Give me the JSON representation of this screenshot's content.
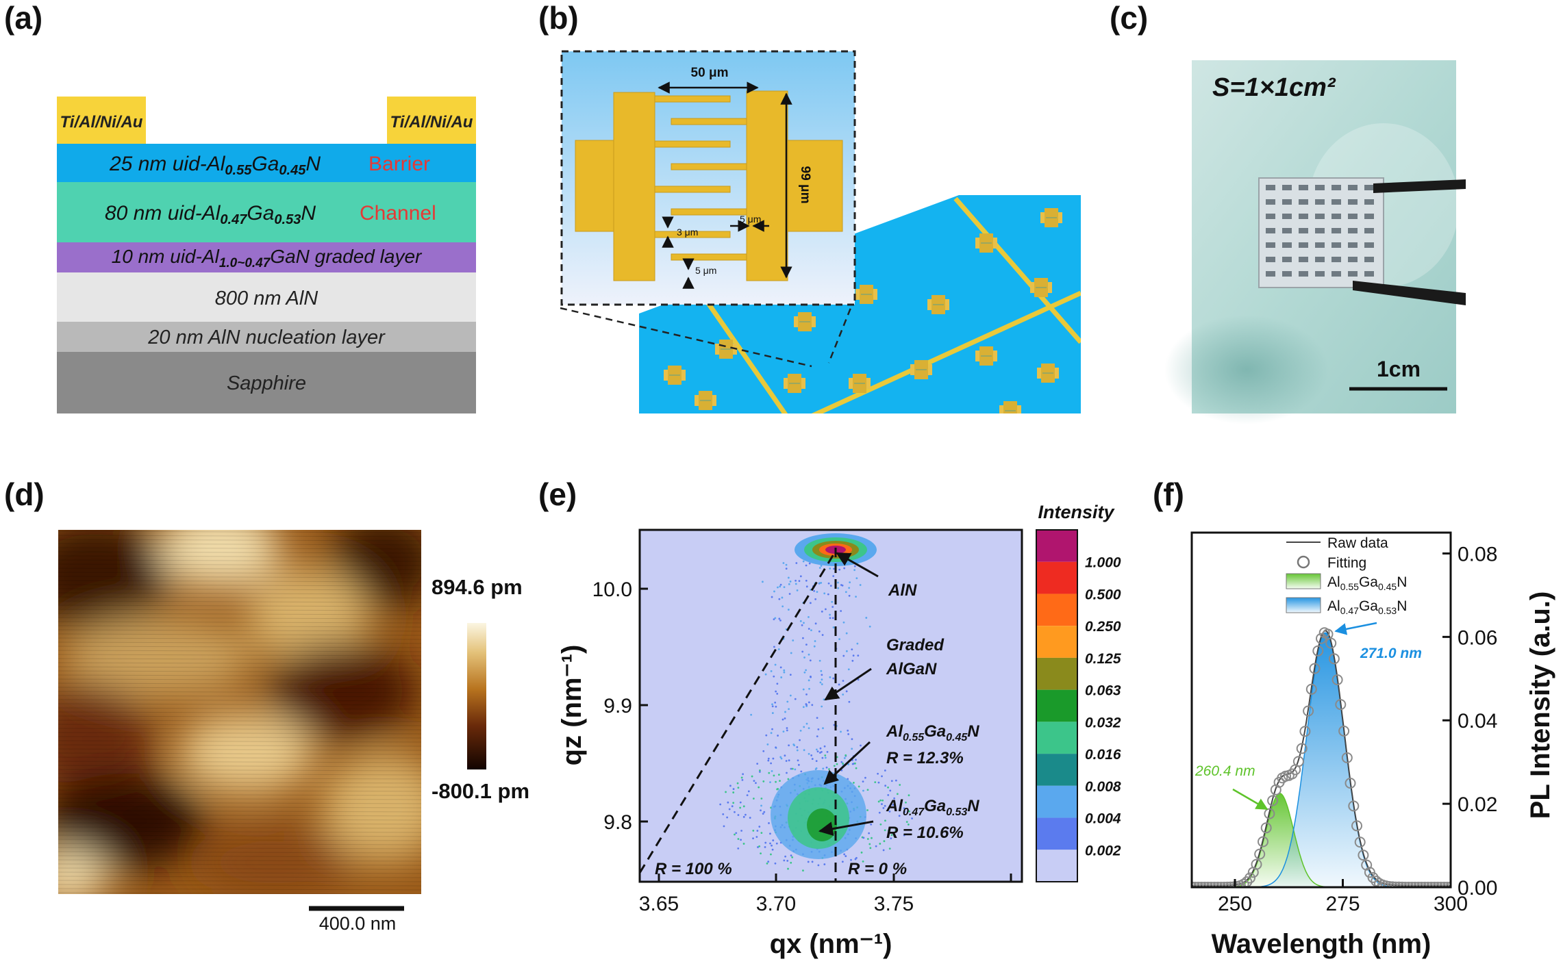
{
  "panels": {
    "a": {
      "label": "(a)",
      "contact_left": "Ti/Al/Ni/Au",
      "contact_right": "Ti/Al/Ni/Au",
      "layers": {
        "barrier": {
          "pre": "25 nm uid-Al",
          "s1": "0.55",
          "mid": "Ga",
          "s2": "0.45",
          "post": "N",
          "tag": "Barrier",
          "color": "#10aaea"
        },
        "channel": {
          "pre": "80 nm uid-Al",
          "s1": "0.47",
          "mid": "Ga",
          "s2": "0.53",
          "post": "N",
          "tag": "Channel",
          "color": "#4fd2b0"
        },
        "graded": {
          "pre": "10 nm uid-Al",
          "s1": "1.0~0.47",
          "post": "GaN graded layer",
          "color": "#9a6fcb"
        },
        "aln": {
          "text": "800 nm AlN",
          "color": "#e6e6e6"
        },
        "nucleation": {
          "text": "20 nm AlN nucleation layer",
          "color": "#b9b9b9"
        },
        "sapphire": {
          "text": "Sapphire",
          "color": "#8a8a8a"
        }
      },
      "tag_color": "#e53935",
      "contact_color": "#f7d33a"
    },
    "b": {
      "label": "(b)",
      "dim_width": "50 μm",
      "dim_height": "99 μm",
      "dim_gap": "5 μm",
      "dim_finger": "3 μm",
      "dim_bottom": "5 μm",
      "wafer_color": "#14b3f0",
      "metal_color": "#e8b92a"
    },
    "c": {
      "label": "(c)",
      "area": "S=1×1cm²",
      "scale": "1cm"
    },
    "d": {
      "label": "(d)",
      "max": "894.6 pm",
      "min": "-800.1 pm",
      "scalebar": "400.0 nm"
    },
    "e": {
      "label": "(e)",
      "intensity_title": "Intensity",
      "intensity_levels": [
        "1.000",
        "0.500",
        "0.250",
        "0.125",
        "0.063",
        "0.032",
        "0.016",
        "0.008",
        "0.004",
        "0.002"
      ],
      "level_colors": [
        "#b0156e",
        "#ee2b21",
        "#ff6a17",
        "#ff9a1f",
        "#8a8a1c",
        "#1a9a2a",
        "#3cc58a",
        "#1a8a8a",
        "#5aa8ee",
        "#5b7bee",
        "#c8cdf5"
      ],
      "xlabel": "qx (nm⁻¹)",
      "ylabel": "qz (nm⁻¹)",
      "xticks": [
        "3.65",
        "3.70",
        "3.75"
      ],
      "yticks": [
        "10.0",
        "9.9",
        "9.8"
      ],
      "annotations": {
        "aln": "AlN",
        "graded1": "Graded",
        "graded2": "AlGaN",
        "p1": {
          "pre": "Al",
          "s1": "0.55",
          "mid": "Ga",
          "s2": "0.45",
          "post": "N",
          "r": "R = 12.3%"
        },
        "p2": {
          "pre": "Al",
          "s1": "0.47",
          "mid": "Ga",
          "s2": "0.53",
          "post": "N",
          "r": "R = 10.6%"
        },
        "r100": "R = 100 %",
        "r0": "R = 0 %"
      }
    },
    "f": {
      "label": "(f)",
      "legend": {
        "raw": "Raw data",
        "fit": "Fitting",
        "p1": {
          "pre": "Al",
          "s1": "0.55",
          "mid": "Ga",
          "s2": "0.45",
          "post": "N"
        },
        "p2": {
          "pre": "Al",
          "s1": "0.47",
          "mid": "Ga",
          "s2": "0.53",
          "post": "N"
        }
      },
      "peak1": "260.4 nm",
      "peak2": "271.0 nm",
      "peak1_color": "#5ec32a",
      "peak2_color": "#1a8fe0"
    }
  },
  "chart_data": {
    "type": "line",
    "xlabel": "Wavelength (nm)",
    "ylabel": "PL Intensity (a.u.)",
    "xlim": [
      240,
      300
    ],
    "ylim": [
      0,
      0.085
    ],
    "xticks": [
      "250",
      "275",
      "300"
    ],
    "yticks": [
      "0.00",
      "0.02",
      "0.04",
      "0.06",
      "0.08"
    ],
    "series": [
      {
        "name": "Al0.55Ga0.45N",
        "peak_x": 260.4,
        "peak_y": 0.0225,
        "width": 3.2
      },
      {
        "name": "Al0.47Ga0.53N",
        "peak_x": 271.0,
        "peak_y": 0.061,
        "width": 4.3
      }
    ]
  }
}
